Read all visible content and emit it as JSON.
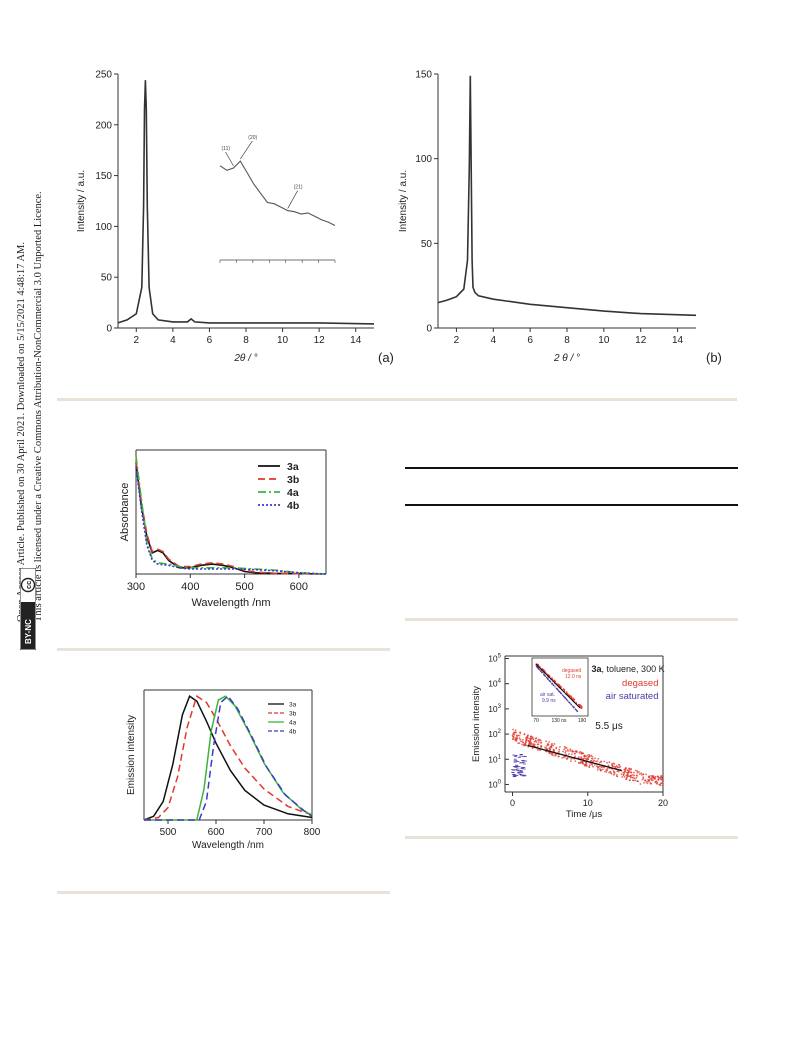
{
  "sidebar": {
    "line1": "Open Access Article. Published on 30 April 2021. Downloaded on 5/15/2021 4:48:17 AM.",
    "line2": "This article is licensed under a Creative Commons Attribution-NonCommercial 3.0 Unported Licence.",
    "badge_cc": "cc",
    "badge_text": "BY-NC"
  },
  "colors": {
    "rule": "#e8e3d6",
    "red": "#e0382d",
    "green": "#3cb43c",
    "blue": "#3a3acc",
    "dark": "#111111",
    "navy": "#4a3aa8"
  },
  "chart_data": [
    {
      "id": "xrd-a",
      "type": "line",
      "panel_label": "(a)",
      "xlabel": "2θ / °",
      "ylabel": "Intensity / a.u.",
      "xlim": [
        1,
        15
      ],
      "ylim": [
        0,
        250
      ],
      "xticks": [
        2,
        4,
        6,
        8,
        10,
        12,
        14
      ],
      "yticks": [
        0,
        50,
        100,
        150,
        200,
        250
      ],
      "series": [
        {
          "x": [
            1.0,
            1.5,
            2.0,
            2.3,
            2.4,
            2.45,
            2.5,
            2.55,
            2.6,
            2.7,
            2.9,
            3.2,
            4.0,
            4.8,
            5.0,
            5.2,
            6.0,
            8.0,
            10.0,
            12.0,
            15.0
          ],
          "y": [
            5,
            8,
            14,
            40,
            120,
            215,
            244,
            215,
            120,
            40,
            14,
            8,
            6,
            6,
            9,
            6,
            5,
            5,
            5,
            5,
            4
          ]
        }
      ],
      "inset": {
        "labels": [
          "(11)",
          "(20)",
          "(21)"
        ],
        "x": [
          2,
          3,
          4,
          5,
          6,
          7,
          8,
          9
        ],
        "series_y": [
          0.82,
          0.78,
          0.8,
          0.86,
          0.76,
          0.66,
          0.58,
          0.5,
          0.49,
          0.46,
          0.43,
          0.42,
          0.4,
          0.41,
          0.38,
          0.35,
          0.33,
          0.3
        ]
      }
    },
    {
      "id": "xrd-b",
      "type": "line",
      "panel_label": "(b)",
      "xlabel": "2 θ / °",
      "ylabel": "Intensity / a.u.",
      "xlim": [
        1,
        15
      ],
      "ylim": [
        0,
        150
      ],
      "xticks": [
        2,
        4,
        6,
        8,
        10,
        12,
        14
      ],
      "yticks": [
        0,
        50,
        100,
        150
      ],
      "series": [
        {
          "x": [
            1.0,
            1.5,
            2.0,
            2.4,
            2.6,
            2.7,
            2.75,
            2.8,
            2.85,
            2.9,
            3.0,
            3.2,
            4.0,
            6.0,
            8.0,
            10.0,
            12.0,
            15.0
          ],
          "y": [
            15,
            16.5,
            18.5,
            23,
            40,
            95,
            149,
            95,
            40,
            24,
            21,
            19,
            17,
            14,
            12,
            10,
            8.5,
            7.5
          ]
        }
      ]
    },
    {
      "id": "absorbance",
      "type": "line",
      "xlabel": "Wavelength /nm",
      "ylabel": "Absorbance",
      "xlim": [
        300,
        650
      ],
      "ylim": [
        0,
        1
      ],
      "xticks": [
        300,
        400,
        500,
        600
      ],
      "legend_position": "top-right",
      "series": [
        {
          "name": "3a",
          "color": "#111111",
          "dash": "",
          "x": [
            300,
            310,
            320,
            330,
            340,
            350,
            360,
            380,
            400,
            420,
            440,
            460,
            480,
            500,
            520,
            560,
            650
          ],
          "y": [
            0.9,
            0.55,
            0.3,
            0.17,
            0.19,
            0.17,
            0.11,
            0.05,
            0.05,
            0.07,
            0.08,
            0.07,
            0.05,
            0.02,
            0.01,
            0.005,
            0.0
          ]
        },
        {
          "name": "3b",
          "color": "#e0382d",
          "dash": "7,4",
          "x": [
            300,
            310,
            320,
            330,
            340,
            350,
            360,
            380,
            400,
            420,
            440,
            460,
            480,
            500,
            520,
            560,
            650
          ],
          "y": [
            0.92,
            0.58,
            0.32,
            0.18,
            0.2,
            0.18,
            0.12,
            0.06,
            0.06,
            0.08,
            0.09,
            0.08,
            0.06,
            0.03,
            0.015,
            0.005,
            0.0
          ]
        },
        {
          "name": "4a",
          "color": "#3cb43c",
          "dash": "8,3,2,3",
          "x": [
            300,
            310,
            320,
            330,
            340,
            360,
            380,
            400,
            440,
            480,
            520,
            560,
            600,
            650
          ],
          "y": [
            0.95,
            0.6,
            0.25,
            0.12,
            0.09,
            0.08,
            0.06,
            0.05,
            0.05,
            0.05,
            0.04,
            0.03,
            0.01,
            0.0
          ]
        },
        {
          "name": "4b",
          "color": "#3a3acc",
          "dash": "2,2",
          "x": [
            300,
            310,
            320,
            330,
            340,
            360,
            380,
            400,
            440,
            480,
            520,
            560,
            600,
            650
          ],
          "y": [
            0.86,
            0.52,
            0.23,
            0.11,
            0.08,
            0.07,
            0.05,
            0.04,
            0.04,
            0.04,
            0.035,
            0.025,
            0.01,
            0.0
          ]
        }
      ]
    },
    {
      "id": "emission",
      "type": "line",
      "xlabel": "Wavelength /nm",
      "ylabel": "Emission intensity",
      "xlim": [
        450,
        800
      ],
      "ylim": [
        0,
        1.05
      ],
      "xticks": [
        500,
        600,
        700,
        800
      ],
      "legend_position": "top-right",
      "series": [
        {
          "name": "3a",
          "color": "#111111",
          "dash": "",
          "x": [
            450,
            470,
            490,
            510,
            530,
            545,
            560,
            580,
            600,
            630,
            660,
            700,
            750,
            800
          ],
          "y": [
            0.0,
            0.03,
            0.15,
            0.45,
            0.85,
            1.0,
            0.96,
            0.8,
            0.62,
            0.4,
            0.24,
            0.12,
            0.05,
            0.02
          ]
        },
        {
          "name": "3b",
          "color": "#e0382d",
          "dash": "7,4",
          "x": [
            450,
            480,
            500,
            520,
            540,
            560,
            580,
            600,
            630,
            660,
            700,
            750,
            800
          ],
          "y": [
            0.0,
            0.02,
            0.1,
            0.35,
            0.75,
            1.0,
            0.95,
            0.82,
            0.6,
            0.42,
            0.25,
            0.11,
            0.04
          ]
        },
        {
          "name": "4a",
          "color": "#3cb43c",
          "dash": "",
          "x": [
            450,
            560,
            575,
            590,
            605,
            620,
            640,
            670,
            700,
            740,
            780,
            800
          ],
          "y": [
            0.0,
            0.0,
            0.25,
            0.72,
            0.97,
            1.0,
            0.92,
            0.7,
            0.46,
            0.22,
            0.08,
            0.04
          ]
        },
        {
          "name": "4b",
          "color": "#3a3acc",
          "dash": "7,4",
          "x": [
            450,
            565,
            580,
            595,
            610,
            625,
            645,
            675,
            705,
            745,
            785,
            800
          ],
          "y": [
            0.0,
            0.0,
            0.15,
            0.6,
            0.95,
            1.0,
            0.9,
            0.67,
            0.43,
            0.2,
            0.07,
            0.03
          ]
        }
      ]
    },
    {
      "id": "decay",
      "type": "scatter",
      "xlabel": "Time /μs",
      "ylabel": "Emission intensity",
      "y_scale": "log",
      "xlim": [
        -1,
        20
      ],
      "ylim_exp": [
        -0.3,
        5.1
      ],
      "xticks": [
        0,
        10,
        20
      ],
      "yticks_exp": [
        0,
        1,
        2,
        3,
        4,
        5
      ],
      "annotation_title_bold": "3a",
      "annotation_title_rest": ", toluene, 300 K",
      "legend": [
        "degased",
        "air saturated"
      ],
      "lifetime": "5.5 μs",
      "inset": {
        "xlabel": "",
        "xticks": [
          "70",
          "130 ns",
          "190"
        ],
        "degassed_label": "degased",
        "degassed_value": "12.0 ns",
        "air_label": "air sat.",
        "air_value": "9.9 ns"
      }
    }
  ]
}
